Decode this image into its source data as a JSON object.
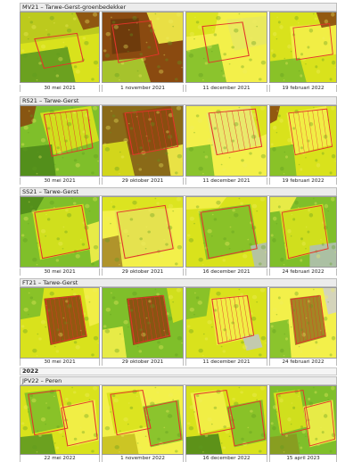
{
  "sections": [
    {
      "title": "MV21 – Tarwe-Gerst-groenbedekker",
      "dates": [
        "30 mei 2021",
        "1 november 2021",
        "11 december 2021",
        "19 februari 2022"
      ]
    },
    {
      "title": "RS21 – Tarwe-Gerst",
      "dates": [
        "30 mei 2021",
        "29 oktober 2021",
        "11 december 2021",
        "19 februari 2022"
      ]
    },
    {
      "title": "SS21 – Tarwe-Gerst",
      "dates": [
        "30 mei 2021",
        "29 oktober 2021",
        "16 december 2021",
        "24 februari 2022"
      ]
    },
    {
      "title": "FT21 – Tarwe-Gerst",
      "dates": [
        "30 mei 2021",
        "29 oktober 2021",
        "11 december 2021",
        "24 februari 2022"
      ]
    },
    {
      "year_label": "2022",
      "title": "JPV22 – Peren",
      "dates": [
        "22 mei 2022",
        "1 november 2022",
        "16 december 2022",
        "15 april 2023"
      ]
    }
  ],
  "colors": {
    "field_outline": "#e3342a",
    "vegetation_high": "#7fbf2a",
    "vegetation_mid": "#d9e21c",
    "vegetation_low": "#f3f04a",
    "bare_soil": "#8a4a10"
  }
}
